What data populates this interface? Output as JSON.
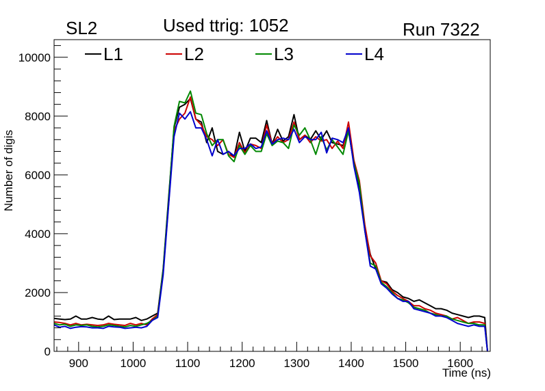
{
  "header": {
    "left": "SL2",
    "center": "Used ttrig: 1052",
    "right": "Run 7322"
  },
  "chart_data": {
    "type": "line",
    "title": "Used ttrig: 1052",
    "xlabel": "Time (ns)",
    "ylabel": "Number of digis",
    "xlim": [
      855,
      1655
    ],
    "ylim": [
      0,
      10600
    ],
    "xticks": [
      900,
      1000,
      1100,
      1200,
      1300,
      1400,
      1500,
      1600
    ],
    "yticks": [
      0,
      2000,
      4000,
      6000,
      8000,
      10000
    ],
    "grid": false,
    "legend": "top",
    "x": [
      855,
      865,
      875,
      885,
      895,
      905,
      915,
      925,
      935,
      945,
      955,
      965,
      975,
      985,
      995,
      1005,
      1015,
      1025,
      1035,
      1045,
      1055,
      1065,
      1075,
      1085,
      1095,
      1105,
      1115,
      1125,
      1135,
      1145,
      1155,
      1165,
      1175,
      1185,
      1195,
      1205,
      1215,
      1225,
      1235,
      1245,
      1255,
      1265,
      1275,
      1285,
      1295,
      1305,
      1315,
      1325,
      1335,
      1345,
      1355,
      1365,
      1375,
      1385,
      1395,
      1405,
      1415,
      1425,
      1435,
      1445,
      1455,
      1465,
      1475,
      1485,
      1495,
      1505,
      1515,
      1525,
      1535,
      1545,
      1555,
      1565,
      1575,
      1585,
      1595,
      1605,
      1615,
      1625,
      1635,
      1645,
      1650
    ],
    "series": [
      {
        "name": "L1",
        "color": "#000000",
        "values": [
          1120,
          1100,
          1080,
          1100,
          1200,
          1100,
          1100,
          1150,
          1100,
          1080,
          1200,
          1080,
          1100,
          1100,
          1100,
          1150,
          1050,
          1100,
          1200,
          1300,
          2800,
          5200,
          7600,
          8300,
          8400,
          8600,
          7900,
          7800,
          7100,
          7600,
          6800,
          6700,
          6800,
          6600,
          7450,
          6800,
          7250,
          7250,
          7100,
          7850,
          7050,
          7550,
          7150,
          7300,
          8050,
          7200,
          7350,
          7200,
          7500,
          7200,
          7500,
          7100,
          7050,
          7000,
          7500,
          6400,
          5500,
          4200,
          3300,
          2800,
          2400,
          2350,
          2100,
          2000,
          1850,
          1800,
          1700,
          1750,
          1650,
          1550,
          1450,
          1450,
          1400,
          1300,
          1250,
          1200,
          1150,
          1200,
          1200,
          1150,
          0
        ]
      },
      {
        "name": "L2",
        "color": "#cc0000",
        "values": [
          1000,
          980,
          950,
          900,
          950,
          900,
          920,
          900,
          880,
          900,
          950,
          920,
          900,
          880,
          950,
          900,
          950,
          900,
          1100,
          1250,
          2700,
          5000,
          7500,
          7900,
          8100,
          8650,
          7900,
          7700,
          7300,
          7200,
          7000,
          7200,
          6700,
          6600,
          7100,
          6750,
          7050,
          7000,
          6900,
          7700,
          7050,
          7300,
          7100,
          7200,
          7800,
          7200,
          7350,
          7100,
          7300,
          7150,
          7200,
          6900,
          7150,
          6900,
          7800,
          6500,
          5800,
          4300,
          3250,
          3000,
          2400,
          2300,
          2050,
          1900,
          1800,
          1700,
          1550,
          1550,
          1450,
          1400,
          1300,
          1250,
          1200,
          1100,
          1150,
          1050,
          950,
          1000,
          1000,
          950,
          0
        ]
      },
      {
        "name": "L3",
        "color": "#008800",
        "values": [
          950,
          900,
          920,
          850,
          900,
          880,
          900,
          850,
          830,
          850,
          900,
          880,
          850,
          830,
          880,
          850,
          900,
          950,
          1050,
          1200,
          2750,
          5100,
          7650,
          8500,
          8450,
          8850,
          8100,
          8050,
          7400,
          7000,
          7200,
          7200,
          6650,
          6450,
          7000,
          6700,
          7000,
          6800,
          6800,
          7400,
          7000,
          7150,
          7100,
          6900,
          7700,
          7350,
          7600,
          7200,
          6700,
          7300,
          6850,
          7200,
          6950,
          6700,
          7500,
          6400,
          5700,
          4100,
          3000,
          2900,
          2350,
          2200,
          2000,
          1800,
          1750,
          1650,
          1500,
          1450,
          1400,
          1300,
          1250,
          1200,
          1200,
          1100,
          1050,
          1000,
          950,
          950,
          900,
          900,
          0
        ]
      },
      {
        "name": "L4",
        "color": "#0000cc",
        "values": [
          900,
          820,
          850,
          780,
          820,
          840,
          830,
          800,
          800,
          780,
          850,
          830,
          820,
          780,
          800,
          820,
          800,
          850,
          1050,
          1150,
          2600,
          4950,
          7300,
          8100,
          7900,
          8150,
          7600,
          7600,
          7200,
          6650,
          7200,
          6700,
          6800,
          6650,
          6900,
          6900,
          7050,
          6900,
          6950,
          7500,
          7050,
          7200,
          7250,
          7200,
          7550,
          7100,
          7300,
          7200,
          7200,
          7450,
          6750,
          7250,
          7200,
          7100,
          7600,
          6300,
          5400,
          4100,
          2900,
          2800,
          2300,
          2150,
          1950,
          1800,
          1700,
          1700,
          1450,
          1400,
          1350,
          1300,
          1200,
          1200,
          1150,
          1050,
          950,
          900,
          850,
          900,
          850,
          850,
          0
        ]
      }
    ]
  }
}
